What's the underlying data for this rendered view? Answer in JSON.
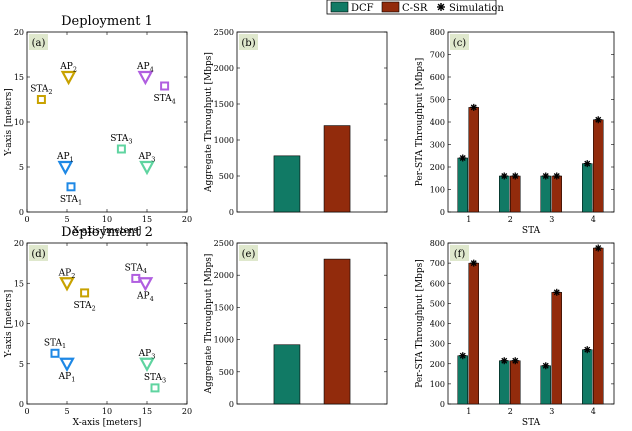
{
  "legend": {
    "entries": [
      {
        "label": "DCF",
        "color": "#117a65",
        "kind": "bar"
      },
      {
        "label": "C-SR",
        "color": "#922b0c",
        "kind": "bar"
      },
      {
        "label": "Simulation",
        "kind": "marker",
        "marker": "asterisk-icon"
      }
    ]
  },
  "colors": {
    "dcf": "#117a65",
    "csr": "#922b0c",
    "panel_label_bg": "#dfe8cd"
  },
  "chart_data": [
    {
      "id": "a",
      "panel_label": "(a)",
      "type": "scatter",
      "title": "Deployment 1",
      "xlabel": "X-axis [meters]",
      "ylabel": "Y-axis [meters]",
      "xlim": [
        0,
        20
      ],
      "ylim": [
        0,
        20
      ],
      "xticks": [
        "0",
        "5",
        "10",
        "15",
        "20"
      ],
      "yticks": [
        "0",
        "5",
        "10",
        "15",
        "20"
      ],
      "points": [
        {
          "kind": "AP",
          "base": "AP",
          "sub": "2",
          "x": 5.2,
          "y": 15.0,
          "color": "#c8a200",
          "label_pos": "above"
        },
        {
          "kind": "STA",
          "base": "STA",
          "sub": "2",
          "x": 1.8,
          "y": 12.5,
          "color": "#c8a200",
          "label_pos": "above"
        },
        {
          "kind": "AP",
          "base": "AP",
          "sub": "4",
          "x": 14.8,
          "y": 15.0,
          "color": "#b05ee0",
          "label_pos": "above"
        },
        {
          "kind": "STA",
          "base": "STA",
          "sub": "4",
          "x": 17.2,
          "y": 14.0,
          "color": "#b05ee0",
          "label_pos": "below"
        },
        {
          "kind": "AP",
          "base": "AP",
          "sub": "1",
          "x": 4.8,
          "y": 5.0,
          "color": "#1e88e5",
          "label_pos": "above"
        },
        {
          "kind": "STA",
          "base": "STA",
          "sub": "1",
          "x": 5.5,
          "y": 2.8,
          "color": "#1e88e5",
          "label_pos": "below"
        },
        {
          "kind": "AP",
          "base": "AP",
          "sub": "3",
          "x": 15.0,
          "y": 5.0,
          "color": "#5fd4a0",
          "label_pos": "above"
        },
        {
          "kind": "STA",
          "base": "STA",
          "sub": "3",
          "x": 11.8,
          "y": 7.0,
          "color": "#5fd4a0",
          "label_pos": "above"
        }
      ]
    },
    {
      "id": "b",
      "panel_label": "(b)",
      "type": "bar",
      "xlabel": "",
      "ylabel": "Aggregate Throughput [Mbps]",
      "ylim": [
        0,
        2500
      ],
      "yticks": [
        "0",
        "500",
        "1000",
        "1500",
        "2000",
        "2500"
      ],
      "categories": [
        "DCF",
        "C-SR"
      ],
      "values": [
        780,
        1200
      ]
    },
    {
      "id": "c",
      "panel_label": "(c)",
      "type": "bar",
      "xlabel": "STA",
      "ylabel": "Per-STA Throughput [Mbps]",
      "ylim": [
        0,
        800
      ],
      "yticks": [
        "0",
        "100",
        "200",
        "300",
        "400",
        "500",
        "600",
        "700",
        "800"
      ],
      "categories": [
        "1",
        "2",
        "3",
        "4"
      ],
      "series": [
        {
          "name": "DCF",
          "values": [
            240,
            160,
            160,
            215
          ]
        },
        {
          "name": "C-SR",
          "values": [
            465,
            160,
            160,
            410
          ]
        }
      ],
      "simulation": {
        "DCF": [
          240,
          160,
          160,
          215
        ],
        "C-SR": [
          465,
          160,
          160,
          410
        ]
      }
    },
    {
      "id": "d",
      "panel_label": "(d)",
      "type": "scatter",
      "title": "Deployment 2",
      "xlabel": "X-axis [meters]",
      "ylabel": "Y-axis [meters]",
      "xlim": [
        0,
        20
      ],
      "ylim": [
        0,
        20
      ],
      "xticks": [
        "0",
        "5",
        "10",
        "15",
        "20"
      ],
      "yticks": [
        "0",
        "5",
        "10",
        "15",
        "20"
      ],
      "points": [
        {
          "kind": "AP",
          "base": "AP",
          "sub": "2",
          "x": 5.0,
          "y": 15.0,
          "color": "#c8a200",
          "label_pos": "above"
        },
        {
          "kind": "STA",
          "base": "STA",
          "sub": "2",
          "x": 7.2,
          "y": 13.8,
          "color": "#c8a200",
          "label_pos": "below"
        },
        {
          "kind": "STA",
          "base": "STA",
          "sub": "4",
          "x": 13.6,
          "y": 15.6,
          "color": "#b05ee0",
          "label_pos": "above"
        },
        {
          "kind": "AP",
          "base": "AP",
          "sub": "4",
          "x": 14.8,
          "y": 15.0,
          "color": "#b05ee0",
          "label_pos": "below"
        },
        {
          "kind": "STA",
          "base": "STA",
          "sub": "1",
          "x": 3.5,
          "y": 6.3,
          "color": "#1e88e5",
          "label_pos": "above"
        },
        {
          "kind": "AP",
          "base": "AP",
          "sub": "1",
          "x": 5.0,
          "y": 5.0,
          "color": "#1e88e5",
          "label_pos": "below"
        },
        {
          "kind": "AP",
          "base": "AP",
          "sub": "3",
          "x": 15.0,
          "y": 5.0,
          "color": "#5fd4a0",
          "label_pos": "above"
        },
        {
          "kind": "STA",
          "base": "STA",
          "sub": "3",
          "x": 16.0,
          "y": 2.0,
          "color": "#5fd4a0",
          "label_pos": "above"
        }
      ]
    },
    {
      "id": "e",
      "panel_label": "(e)",
      "type": "bar",
      "xlabel": "",
      "ylabel": "Aggregate Throughput [Mbps]",
      "ylim": [
        0,
        2500
      ],
      "yticks": [
        "0",
        "500",
        "1000",
        "1500",
        "2000",
        "2500"
      ],
      "categories": [
        "DCF",
        "C-SR"
      ],
      "values": [
        920,
        2250
      ]
    },
    {
      "id": "f",
      "panel_label": "(f)",
      "type": "bar",
      "xlabel": "STA",
      "ylabel": "Per-STA Throughput [Mbps]",
      "ylim": [
        0,
        800
      ],
      "yticks": [
        "0",
        "100",
        "200",
        "300",
        "400",
        "500",
        "600",
        "700",
        "800"
      ],
      "categories": [
        "1",
        "2",
        "3",
        "4"
      ],
      "series": [
        {
          "name": "DCF",
          "values": [
            240,
            215,
            190,
            270
          ]
        },
        {
          "name": "C-SR",
          "values": [
            700,
            215,
            555,
            775
          ]
        }
      ],
      "simulation": {
        "DCF": [
          240,
          215,
          190,
          270
        ],
        "C-SR": [
          700,
          215,
          555,
          775
        ]
      }
    }
  ]
}
